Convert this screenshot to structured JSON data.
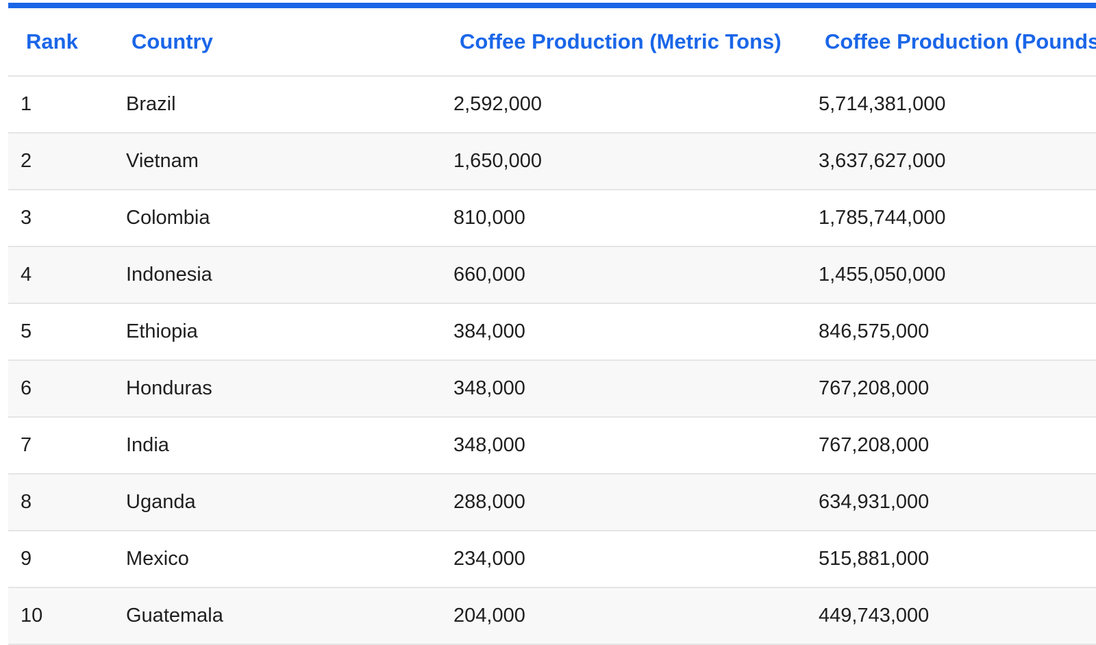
{
  "table": {
    "headers": {
      "rank": "Rank",
      "country": "Country",
      "metric": "Coffee Production (Metric Tons)",
      "pounds": "Coffee Production (Pounds)"
    },
    "rows": [
      {
        "rank": "1",
        "country": "Brazil",
        "metric": "2,592,000",
        "pounds": "5,714,381,000"
      },
      {
        "rank": "2",
        "country": "Vietnam",
        "metric": "1,650,000",
        "pounds": "3,637,627,000"
      },
      {
        "rank": "3",
        "country": "Colombia",
        "metric": "810,000",
        "pounds": "1,785,744,000"
      },
      {
        "rank": "4",
        "country": "Indonesia",
        "metric": "660,000",
        "pounds": "1,455,050,000"
      },
      {
        "rank": "5",
        "country": "Ethiopia",
        "metric": "384,000",
        "pounds": "846,575,000"
      },
      {
        "rank": "6",
        "country": "Honduras",
        "metric": "348,000",
        "pounds": "767,208,000"
      },
      {
        "rank": "7",
        "country": "India",
        "metric": "348,000",
        "pounds": "767,208,000"
      },
      {
        "rank": "8",
        "country": "Uganda",
        "metric": "288,000",
        "pounds": "634,931,000"
      },
      {
        "rank": "9",
        "country": "Mexico",
        "metric": "234,000",
        "pounds": "515,881,000"
      },
      {
        "rank": "10",
        "country": "Guatemala",
        "metric": "204,000",
        "pounds": "449,743,000"
      }
    ]
  },
  "colors": {
    "accent": "#1a66e8",
    "row_alt": "#f8f8f8",
    "border": "#e5e5e5",
    "text": "#1f1f1f"
  }
}
